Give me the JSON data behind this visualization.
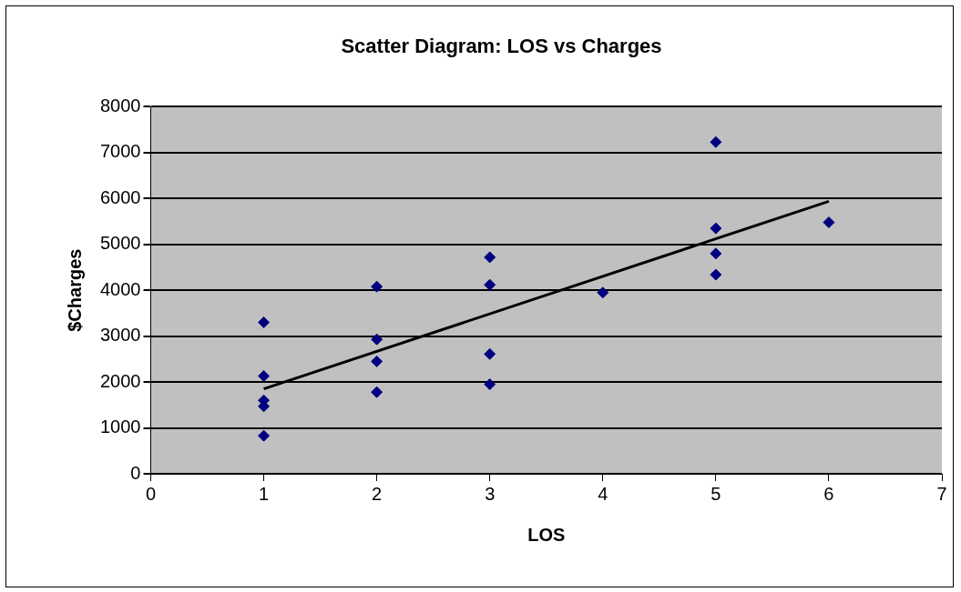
{
  "chart_data": {
    "type": "scatter",
    "title": "Scatter Diagram: LOS vs Charges",
    "xlabel": "LOS",
    "ylabel": "$Charges",
    "xlim": [
      0,
      7
    ],
    "xticks": [
      0,
      1,
      2,
      3,
      4,
      5,
      6,
      7
    ],
    "ylim": [
      0,
      8000
    ],
    "yticks": [
      0,
      1000,
      2000,
      3000,
      4000,
      5000,
      6000,
      7000,
      8000
    ],
    "grid": "y",
    "legend": false,
    "series": [
      {
        "marker": "diamond",
        "color": "#000080",
        "x": [
          1,
          1,
          1,
          1,
          1,
          2,
          2,
          2,
          2,
          3,
          3,
          3,
          3,
          4,
          5,
          5,
          5,
          5,
          6
        ],
        "values": [
          3300,
          2130,
          1600,
          1470,
          830,
          4080,
          2930,
          2450,
          1780,
          4720,
          4120,
          2610,
          1950,
          3950,
          7230,
          5350,
          4800,
          4340,
          5480
        ]
      },
      {
        "type": "line",
        "marker": "none",
        "color": "#000000",
        "x": [
          1,
          6
        ],
        "values": [
          1850,
          5940
        ]
      }
    ]
  }
}
